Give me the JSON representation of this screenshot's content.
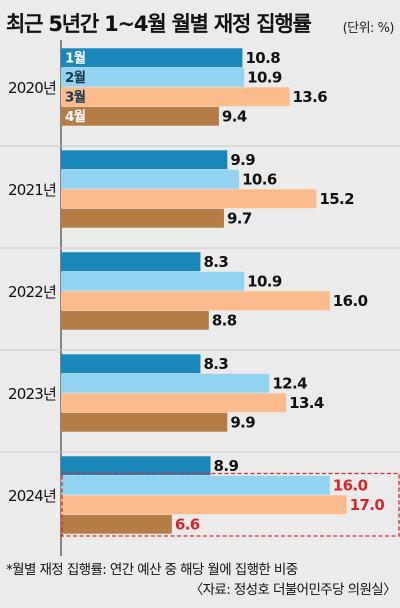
{
  "title": "최근 5년간 1~4월 월별 재정 집행률",
  "unit": "(단위: %)",
  "footnote": "*월별 재정 집행률: 연간 예산 중 해당 월에 집행한 비중",
  "source": "〈자료: 정성호 더불어민주당 의원실〉",
  "colors": {
    "month1": "#1a87bb",
    "month2": "#92d3f2",
    "month3": "#fbbb8c",
    "month4": "#b57d46",
    "highlight": "#d9262a",
    "text": "#111111"
  },
  "chart_data": {
    "type": "bar",
    "orientation": "horizontal",
    "categories": [
      "2020년",
      "2021년",
      "2022년",
      "2023년",
      "2024년"
    ],
    "series": [
      {
        "name": "1월",
        "values": [
          10.8,
          9.9,
          8.3,
          8.3,
          8.9
        ]
      },
      {
        "name": "2월",
        "values": [
          10.9,
          10.6,
          10.9,
          12.4,
          16.0
        ]
      },
      {
        "name": "3월",
        "values": [
          13.6,
          15.2,
          16.0,
          13.4,
          17.0
        ]
      },
      {
        "name": "4월",
        "values": [
          9.4,
          9.7,
          8.8,
          9.9,
          6.6
        ]
      }
    ],
    "value_labels": [
      [
        "10.8",
        "10.9",
        "13.6",
        "9.4"
      ],
      [
        "9.9",
        "10.6",
        "15.2",
        "9.7"
      ],
      [
        "8.3",
        "10.9",
        "16.0",
        "8.8"
      ],
      [
        "8.3",
        "12.4",
        "13.4",
        "9.9"
      ],
      [
        "8.9",
        "16.0",
        "17.0",
        "6.6"
      ]
    ],
    "legend_in_bars": true,
    "highlight_year": "2024년",
    "xlim": [
      0,
      17.5
    ]
  }
}
